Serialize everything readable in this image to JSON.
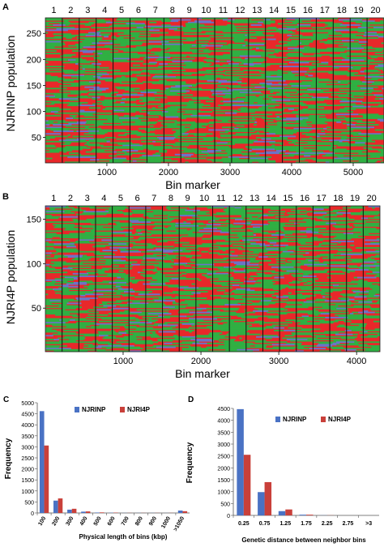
{
  "panels_heat": [
    {
      "letter": "A",
      "ylabel": "NJRINP population",
      "xlabel": "Bin marker",
      "chrom_labels": [
        "1",
        "2",
        "3",
        "4",
        "5",
        "6",
        "7",
        "8",
        "9",
        "10",
        "11",
        "12",
        "13",
        "14",
        "15",
        "16",
        "17",
        "18",
        "19",
        "20"
      ],
      "xticks": [
        "1000",
        "2000",
        "3000",
        "4000",
        "5000"
      ],
      "yticks": [
        "50",
        "100",
        "150",
        "200",
        "250"
      ]
    },
    {
      "letter": "B",
      "ylabel": "NJRI4P population",
      "xlabel": "Bin marker",
      "chrom_labels": [
        "1",
        "2",
        "3",
        "4",
        "5",
        "6",
        "7",
        "8",
        "9",
        "10",
        "11",
        "12",
        "13",
        "14",
        "15",
        "16",
        "17",
        "18",
        "19",
        "20"
      ],
      "xticks": [
        "1000",
        "2000",
        "3000",
        "4000"
      ],
      "yticks": [
        "50",
        "100",
        "150"
      ]
    }
  ],
  "panels_bar": [
    {
      "letter": "C",
      "ylabel": "Frequency",
      "xlabel": "Physical length of bins (kbp)",
      "legend": [
        "NJRINP",
        "NJRI4P"
      ],
      "yticks": [
        "0",
        "500",
        "1000",
        "1500",
        "2000",
        "2500",
        "3000",
        "3500",
        "4000",
        "4500",
        "5000"
      ]
    },
    {
      "letter": "D",
      "ylabel": "Frequency",
      "xlabel": "Genetic distance between neighbor bins",
      "legend": [
        "NJRINP",
        "NJRI4P"
      ],
      "yticks": [
        "0",
        "500",
        "1000",
        "1500",
        "2000",
        "2500",
        "3000",
        "3500",
        "4000",
        "4500"
      ]
    }
  ],
  "colors": {
    "heat_red": "#e8282a",
    "heat_green": "#2fb043",
    "heat_blue": "#6b74c8",
    "series1": "#4a72c4",
    "series2": "#c9403a"
  },
  "chart_data": [
    {
      "type": "heatmap",
      "panel": "A",
      "x_range": [
        1,
        5500
      ],
      "y_range": [
        1,
        280
      ],
      "chromosomes": 20,
      "categories": [
        "red",
        "green",
        "blue"
      ]
    },
    {
      "type": "heatmap",
      "panel": "B",
      "x_range": [
        1,
        4300
      ],
      "y_range": [
        1,
        165
      ],
      "chromosomes": 20,
      "categories": [
        "red",
        "green",
        "blue"
      ]
    },
    {
      "type": "bar",
      "panel": "C",
      "categories": [
        "100",
        "200",
        "300",
        "400",
        "500",
        "600",
        "700",
        "800",
        "900",
        "1000",
        ">1050"
      ],
      "series": [
        {
          "name": "NJRINP",
          "values": [
            4620,
            560,
            150,
            60,
            20,
            10,
            5,
            5,
            5,
            3,
            110
          ]
        },
        {
          "name": "NJRI4P",
          "values": [
            3060,
            660,
            190,
            70,
            25,
            15,
            5,
            5,
            5,
            5,
            80
          ]
        }
      ],
      "ylim": [
        0,
        5000
      ]
    },
    {
      "type": "bar",
      "panel": "D",
      "categories": [
        "0.25",
        "0.75",
        "1.25",
        "1.75",
        "2.25",
        "2.75",
        ">3"
      ],
      "series": [
        {
          "name": "NJRINP",
          "values": [
            4470,
            980,
            180,
            30,
            5,
            0,
            0
          ]
        },
        {
          "name": "NJRI4P",
          "values": [
            2550,
            1400,
            250,
            30,
            5,
            0,
            0
          ]
        }
      ],
      "ylim": [
        0,
        4500
      ]
    }
  ]
}
